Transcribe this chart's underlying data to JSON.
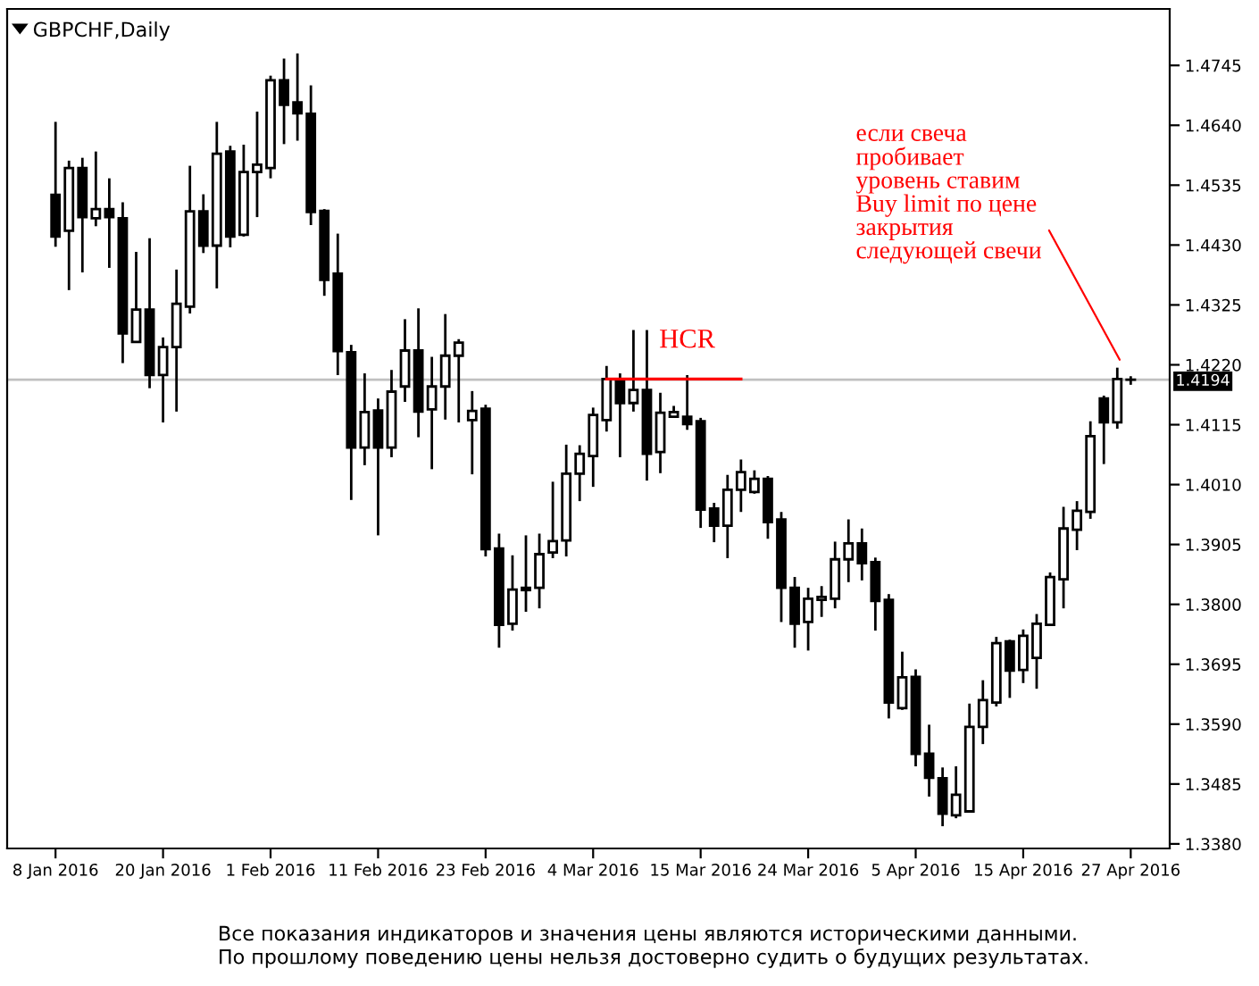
{
  "chart_data": {
    "type": "candlestick",
    "title": "GBPCHF,Daily",
    "categories": [
      "8 Jan 2016",
      null,
      null,
      null,
      null,
      null,
      null,
      null,
      "20 Jan 2016",
      null,
      null,
      null,
      null,
      null,
      null,
      null,
      "1 Feb 2016",
      null,
      null,
      null,
      null,
      null,
      null,
      null,
      "11 Feb 2016",
      null,
      null,
      null,
      null,
      null,
      null,
      null,
      "23 Feb 2016",
      null,
      null,
      null,
      null,
      null,
      null,
      null,
      "4 Mar 2016",
      null,
      null,
      null,
      null,
      null,
      null,
      null,
      "15 Mar 2016",
      null,
      null,
      null,
      null,
      null,
      null,
      null,
      "24 Mar 2016",
      null,
      null,
      null,
      null,
      null,
      null,
      null,
      "5 Apr 2016",
      null,
      null,
      null,
      null,
      null,
      null,
      null,
      "15 Apr 2016",
      null,
      null,
      null,
      null,
      null,
      null,
      null,
      "27 Apr 2016"
    ],
    "ohlc": [
      [
        1.4518,
        1.4646,
        1.4427,
        1.4445
      ],
      [
        1.4455,
        1.4578,
        1.4351,
        1.4565
      ],
      [
        1.4565,
        1.4583,
        1.4382,
        1.4479
      ],
      [
        1.4477,
        1.4594,
        1.4463,
        1.4493
      ],
      [
        1.4493,
        1.4547,
        1.439,
        1.4479
      ],
      [
        1.4477,
        1.4505,
        1.4223,
        1.4275
      ],
      [
        1.426,
        1.4418,
        1.426,
        1.4317
      ],
      [
        1.4317,
        1.4442,
        1.4179,
        1.4202
      ],
      [
        1.4202,
        1.4268,
        1.4119,
        1.4251
      ],
      [
        1.4251,
        1.4387,
        1.4138,
        1.4327
      ],
      [
        1.4322,
        1.4569,
        1.431,
        1.4489
      ],
      [
        1.4489,
        1.4519,
        1.4416,
        1.4429
      ],
      [
        1.4429,
        1.4646,
        1.4354,
        1.459
      ],
      [
        1.4594,
        1.4604,
        1.4426,
        1.4445
      ],
      [
        1.4448,
        1.4606,
        1.4445,
        1.4558
      ],
      [
        1.4558,
        1.4664,
        1.4479,
        1.4571
      ],
      [
        1.4565,
        1.4727,
        1.4547,
        1.4719
      ],
      [
        1.4719,
        1.4757,
        1.4607,
        1.4676
      ],
      [
        1.468,
        1.4766,
        1.4613,
        1.4661
      ],
      [
        1.466,
        1.471,
        1.4465,
        1.4488
      ],
      [
        1.449,
        1.4493,
        1.4341,
        1.4369
      ],
      [
        1.438,
        1.445,
        1.4202,
        1.4244
      ],
      [
        1.4242,
        1.4255,
        1.3983,
        1.4075
      ],
      [
        1.4075,
        1.4205,
        1.4044,
        1.4137
      ],
      [
        1.414,
        1.4161,
        1.3921,
        1.4075
      ],
      [
        1.4075,
        1.4211,
        1.4058,
        1.4173
      ],
      [
        1.4182,
        1.43,
        1.4155,
        1.4245
      ],
      [
        1.4245,
        1.4319,
        1.4093,
        1.4138
      ],
      [
        1.4142,
        1.4234,
        1.4037,
        1.4182
      ],
      [
        1.4182,
        1.4309,
        1.4124,
        1.4236
      ],
      [
        1.4236,
        1.4265,
        1.4119,
        1.4259
      ],
      [
        1.4123,
        1.4174,
        1.4028,
        1.4139
      ],
      [
        1.4143,
        1.415,
        1.3884,
        1.3897
      ],
      [
        1.3898,
        1.3924,
        1.3724,
        1.3764
      ],
      [
        1.3766,
        1.3886,
        1.3754,
        1.3826
      ],
      [
        1.3829,
        1.3921,
        1.3787,
        1.3825
      ],
      [
        1.3829,
        1.3924,
        1.3793,
        1.3888
      ],
      [
        1.3891,
        1.4015,
        1.3881,
        1.3911
      ],
      [
        1.3912,
        1.408,
        1.3884,
        1.4029
      ],
      [
        1.4029,
        1.4079,
        1.3981,
        1.4064
      ],
      [
        1.406,
        1.4145,
        1.4006,
        1.4132
      ],
      [
        1.4123,
        1.4218,
        1.4103,
        1.4195
      ],
      [
        1.4195,
        1.4205,
        1.4058,
        1.4153
      ],
      [
        1.4153,
        1.4281,
        1.4138,
        1.4176
      ],
      [
        1.4176,
        1.4281,
        1.4017,
        1.4064
      ],
      [
        1.4067,
        1.4171,
        1.403,
        1.4136
      ],
      [
        1.4129,
        1.4148,
        1.4127,
        1.4137
      ],
      [
        1.4129,
        1.4202,
        1.4106,
        1.4116
      ],
      [
        1.4121,
        1.4127,
        1.3934,
        1.3966
      ],
      [
        1.3968,
        1.3978,
        1.3909,
        1.3938
      ],
      [
        1.3938,
        1.4027,
        1.3881,
        1.4001
      ],
      [
        1.4001,
        1.4054,
        1.3962,
        1.4032
      ],
      [
        1.3997,
        1.4035,
        1.3994,
        1.402
      ],
      [
        1.402,
        1.4025,
        1.3915,
        1.3944
      ],
      [
        1.3949,
        1.3962,
        1.3769,
        1.3829
      ],
      [
        1.3829,
        1.3848,
        1.3724,
        1.3766
      ],
      [
        1.3769,
        1.3829,
        1.3719,
        1.381
      ],
      [
        1.3808,
        1.3832,
        1.3778,
        1.3813
      ],
      [
        1.381,
        1.391,
        1.3793,
        1.3879
      ],
      [
        1.3879,
        1.3949,
        1.3839,
        1.3907
      ],
      [
        1.3907,
        1.3933,
        1.3842,
        1.3872
      ],
      [
        1.3874,
        1.3882,
        1.3754,
        1.3806
      ],
      [
        1.3808,
        1.3818,
        1.36,
        1.3628
      ],
      [
        1.3618,
        1.3717,
        1.3615,
        1.3672
      ],
      [
        1.3673,
        1.3686,
        1.3516,
        1.3538
      ],
      [
        1.3538,
        1.3589,
        1.3463,
        1.3496
      ],
      [
        1.3495,
        1.3514,
        1.3411,
        1.3433
      ],
      [
        1.343,
        1.3516,
        1.3425,
        1.3466
      ],
      [
        1.3437,
        1.3626,
        1.3437,
        1.3585
      ],
      [
        1.3585,
        1.3667,
        1.3555,
        1.3632
      ],
      [
        1.3628,
        1.3743,
        1.3621,
        1.3732
      ],
      [
        1.3735,
        1.3738,
        1.3636,
        1.3684
      ],
      [
        1.3685,
        1.3756,
        1.3662,
        1.3745
      ],
      [
        1.3706,
        1.3783,
        1.3652,
        1.3766
      ],
      [
        1.3764,
        1.3856,
        1.3762,
        1.3848
      ],
      [
        1.3844,
        1.3971,
        1.3793,
        1.3933
      ],
      [
        1.3931,
        1.3981,
        1.3895,
        1.3964
      ],
      [
        1.3962,
        1.4121,
        1.395,
        1.4095
      ],
      [
        1.4161,
        1.4166,
        1.4046,
        1.4119
      ],
      [
        1.4119,
        1.4215,
        1.4108,
        1.4195
      ],
      [
        1.4194,
        1.42,
        1.4185,
        1.4194
      ]
    ],
    "colors": [
      "#000000",
      "#ffffff",
      "#000000",
      "#ffffff",
      "#000000",
      "#000000",
      "#ffffff",
      "#000000",
      "#ffffff",
      "#ffffff",
      "#ffffff",
      "#000000",
      "#ffffff",
      "#000000",
      "#ffffff",
      "#ffffff",
      "#ffffff",
      "#000000",
      "#000000",
      "#000000",
      "#000000",
      "#000000",
      "#000000",
      "#ffffff",
      "#000000",
      "#ffffff",
      "#ffffff",
      "#000000",
      "#ffffff",
      "#ffffff",
      "#ffffff",
      "#ffffff",
      "#000000",
      "#000000",
      "#ffffff",
      "#000000",
      "#ffffff",
      "#ffffff",
      "#ffffff",
      "#ffffff",
      "#ffffff",
      "#ffffff",
      "#000000",
      "#ffffff",
      "#000000",
      "#ffffff",
      "#ffffff",
      "#000000",
      "#000000",
      "#000000",
      "#ffffff",
      "#ffffff",
      "#ffffff",
      "#000000",
      "#000000",
      "#000000",
      "#ffffff",
      "#ffffff",
      "#ffffff",
      "#ffffff",
      "#000000",
      "#000000",
      "#000000",
      "#ffffff",
      "#000000",
      "#000000",
      "#000000",
      "#ffffff",
      "#ffffff",
      "#ffffff",
      "#ffffff",
      "#000000",
      "#ffffff",
      "#ffffff",
      "#ffffff",
      "#ffffff",
      "#ffffff",
      "#ffffff",
      "#000000",
      "#ffffff",
      "#000000"
    ],
    "series": [
      {
        "type": "line",
        "name": "HCR",
        "color": "#ff0000",
        "values": [
          null,
          null,
          null,
          null,
          null,
          null,
          null,
          null,
          null,
          null,
          null,
          null,
          null,
          null,
          null,
          null,
          null,
          null,
          null,
          null,
          null,
          null,
          null,
          null,
          null,
          null,
          null,
          null,
          null,
          null,
          null,
          null,
          null,
          null,
          null,
          null,
          null,
          null,
          null,
          null,
          null,
          1.4195,
          1.4195,
          1.4195,
          1.4195,
          1.4195,
          1.4195,
          1.4195,
          1.4195,
          1.4195,
          1.4195,
          1.4195,
          null,
          null,
          null,
          null,
          null,
          null,
          null,
          null,
          null,
          null,
          null,
          null,
          null,
          null,
          null,
          null,
          null,
          null,
          null,
          null,
          null,
          null,
          null,
          null,
          null,
          null,
          null,
          null,
          null
        ]
      }
    ],
    "ylim": [
      1.3372,
      1.4844
    ],
    "yticks": [
      {
        "value": 1.338,
        "label": "1.3380"
      },
      {
        "value": 1.3485,
        "label": "1.3485"
      },
      {
        "value": 1.359,
        "label": "1.3590"
      },
      {
        "value": 1.3695,
        "label": "1.3695"
      },
      {
        "value": 1.38,
        "label": "1.3800"
      },
      {
        "value": 1.3905,
        "label": "1.3905"
      },
      {
        "value": 1.401,
        "label": "1.4010"
      },
      {
        "value": 1.4115,
        "label": "1.4115"
      },
      {
        "value": 1.422,
        "label": "1.4220"
      },
      {
        "value": 1.4325,
        "label": "1.4325"
      },
      {
        "value": 1.443,
        "label": "1.4430"
      },
      {
        "value": 1.4535,
        "label": "1.4535"
      },
      {
        "value": 1.464,
        "label": "1.4640"
      },
      {
        "value": 1.4745,
        "label": "1.4745"
      }
    ],
    "ref_lines": [
      {
        "axis": "y",
        "value": 1.4194,
        "label": "1.4194",
        "color": "#c0c0c0"
      }
    ],
    "annotations": [
      "если свеча\nпробивает\nуровень ставим\nBuy limit по цене\nзакрытия\nследующей свечи",
      "Все показания индикаторов и значения цены являются историческими данными.\nПо прошлому поведению цены нельзя достоверно судить о будущих результатах."
    ],
    "grid": false,
    "legend": false
  }
}
